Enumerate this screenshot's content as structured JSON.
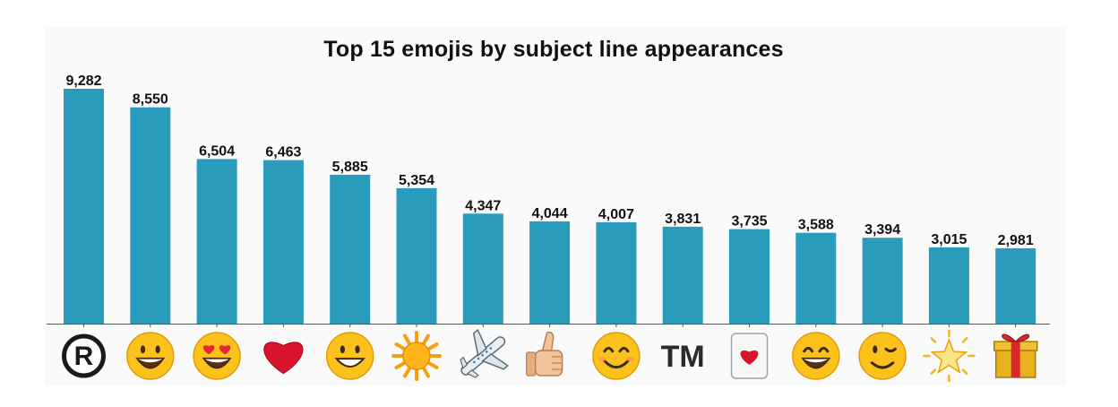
{
  "chart_data": {
    "type": "bar",
    "title": "Top 15 emojis by subject line appearances",
    "xlabel": "",
    "ylabel": "",
    "ylim": [
      0,
      9282
    ],
    "grid": false,
    "categories": [
      "registered-sign",
      "grinning-face-big-eyes",
      "heart-eyes-face",
      "red-heart",
      "grinning-face",
      "sun",
      "airplane",
      "thumbs-up",
      "smiling-face-smiling-eyes",
      "trade-mark",
      "heart-suit-card",
      "grinning-face-smiling-eyes",
      "winking-face",
      "glowing-star",
      "wrapped-gift"
    ],
    "values": [
      9282,
      8550,
      6504,
      6463,
      5885,
      5354,
      4347,
      4044,
      4007,
      3831,
      3735,
      3588,
      3394,
      3015,
      2981
    ],
    "value_labels": [
      "9,282",
      "8,550",
      "6,504",
      "6,463",
      "5,885",
      "5,354",
      "4,347",
      "4,044",
      "4,007",
      "3,831",
      "3,735",
      "3,588",
      "3,394",
      "3,015",
      "2,981"
    ],
    "tick_text": {
      "trade-mark": "TM"
    },
    "colors": {
      "bar": "#2a9bbb",
      "axis": "#555555"
    }
  }
}
